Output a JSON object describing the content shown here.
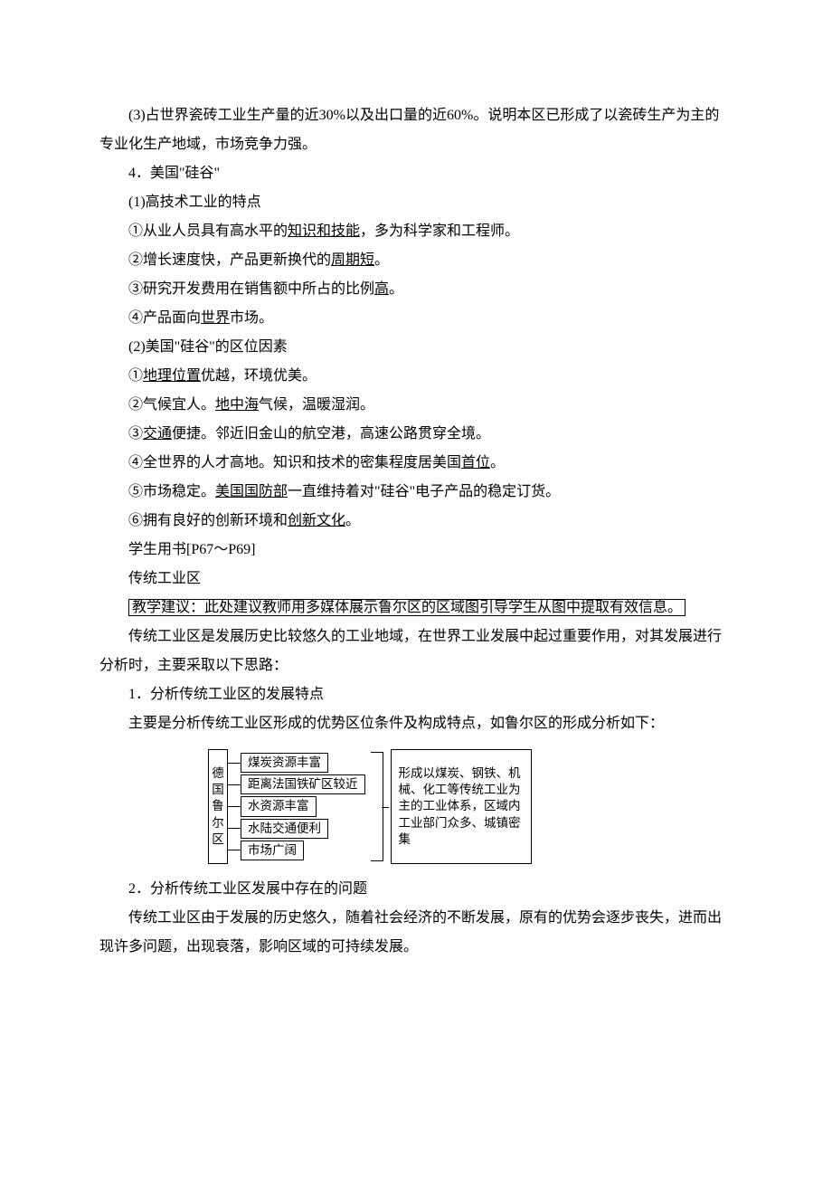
{
  "p1_a": "(3)占世界瓷砖工业生产量的近30%以及出口量的近60%。说明本区已形成了以瓷砖生产为主的专业化生产地域，市场竞争力强。",
  "p2": "4．美国\"硅谷\"",
  "p3": "(1)高技术工业的特点",
  "p4a": "①从业人员具有高水平的",
  "p4u": "知识和技能",
  "p4b": "，多为科学家和工程师。",
  "p5a": "②增长速度快，产品更新换代的",
  "p5u": "周期短",
  "p5b": "。",
  "p6a": "③研究开发费用在销售额中所占的比例",
  "p6u": "高",
  "p6b": "。",
  "p7a": "④产品面向",
  "p7u": "世界",
  "p7b": "市场。",
  "p8": "(2)美国\"硅谷\"的区位因素",
  "p9a": "①",
  "p9u": "地理位置",
  "p9b": "优越，环境优美。",
  "p10a": "②气候宜人。",
  "p10u": "地中海",
  "p10b": "气候，温暖湿润。",
  "p11a": "③",
  "p11u": "交通",
  "p11b": "便捷。邻近旧金山的航空港，高速公路贯穿全境。",
  "p12a": "④全世界的人才高地。知识和技术的密集程度居美国",
  "p12u": "首位",
  "p12b": "。",
  "p13a": "⑤市场稳定。",
  "p13u": "美国国防部",
  "p13b": "一直维持着对\"硅谷\"电子产品的稳定订货。",
  "p14a": "⑥拥有良好的创新环境和",
  "p14u": "创新文化",
  "p14b": "。",
  "p15": "学生用书[P67～P69]",
  "p16": "传统工业区",
  "p17a": "教学建议：此处建议教师用多媒体展示鲁尔区的区域图引导学生从图中提取有效信息。",
  "p18": "传统工业区是发展历史比较悠久的工业地域，在世界工业发展中起过重要作用，对其发展进行分析时，主要采取以下思路：",
  "p19": "1．分析传统工业区的发展特点",
  "p20": "主要是分析传统工业区形成的优势区位条件及构成特点，如鲁尔区的形成分析如下：",
  "dia": {
    "left": "德国鲁尔区",
    "items": [
      "煤炭资源丰富",
      "距离法国铁矿区较近",
      "水资源丰富",
      "水陆交通便利",
      "市场广阔"
    ],
    "right": "形成以煤炭、钢铁、机械、化工等传统工业为主的工业体系，区域内工业部门众多、城镇密集"
  },
  "p21": "2．分析传统工业区发展中存在的问题",
  "p22": "传统工业区由于发展的历史悠久，随着社会经济的不断发展，原有的优势会逐步丧失，进而出现许多问题，出现衰落，影响区域的可持续发展。"
}
